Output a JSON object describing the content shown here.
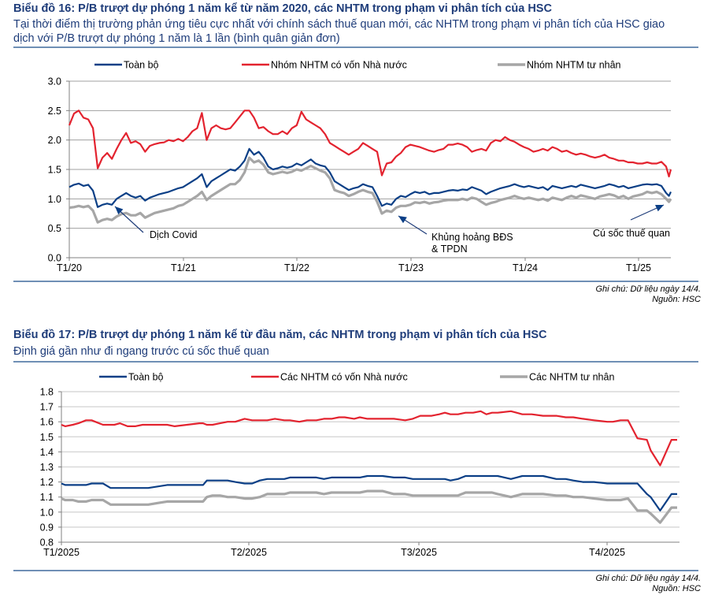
{
  "chart1": {
    "title": "Biểu đồ 16: P/B trượt dự phóng 1 năm kể từ năm 2020, các NHTM trong phạm vi phân tích của HSC",
    "subtitle_line1": "Tại thời điểm thị trường phản ứng tiêu cực nhất với chính sách thuế quan mới, các NHTM trong phạm vi phân tích của HSC giao",
    "subtitle_line2": "dịch với P/B trượt dự phóng 1 năm là 1 lần (bình quân giản đơn)",
    "note": "Ghi chú: Dữ liệu ngày 14/4.",
    "source": "Nguồn: HSC"
  },
  "chart2": {
    "title": "Biểu đồ 17: P/B trượt dự phóng 1 năm kể từ đầu năm, các NHTM trong phạm vi phân tích của HSC",
    "subtitle": "Định giá gần như đi ngang trước cú sốc thuế quan",
    "note": "Ghi chú: Dữ liệu ngày 14/4.",
    "source": "Nguồn: HSC"
  },
  "colors": {
    "total": "#0b3f86",
    "state": "#e3232f",
    "private": "#a6a6a6",
    "title": "#1f3d7a"
  },
  "chart_data": [
    {
      "type": "line",
      "title": "Biểu đồ 16: P/B trượt dự phóng 1 năm kể từ năm 2020, các NHTM trong phạm vi phân tích của HSC",
      "xlabel": "",
      "ylabel": "",
      "ylim": [
        0,
        3.0
      ],
      "yticks": [
        "0.0",
        "0.5",
        "1.0",
        "1.5",
        "2.0",
        "2.5",
        "3.0"
      ],
      "xticks": [
        "T1/20",
        "T1/21",
        "T1/22",
        "T1/23",
        "T1/24",
        "T1/25"
      ],
      "x_unit": "months since Jan 2020",
      "grid": true,
      "legend": "top",
      "x": [
        0,
        0.5,
        1,
        1.5,
        2,
        2.5,
        3,
        3.5,
        4,
        4.5,
        5,
        5.5,
        6,
        6.5,
        7,
        7.5,
        8,
        8.5,
        9,
        9.5,
        10,
        10.5,
        11,
        11.5,
        12,
        12.5,
        13,
        13.5,
        14,
        14.5,
        15,
        15.5,
        16,
        16.5,
        17,
        17.5,
        18,
        18.5,
        19,
        19.5,
        20,
        20.5,
        21,
        21.5,
        22,
        22.5,
        23,
        23.5,
        24,
        24.5,
        25,
        25.5,
        26,
        26.5,
        27,
        27.5,
        28,
        28.5,
        29,
        29.5,
        30,
        30.5,
        31,
        31.5,
        32,
        32.5,
        33,
        33.5,
        34,
        34.5,
        35,
        35.5,
        36,
        36.5,
        37,
        37.5,
        38,
        38.5,
        39,
        39.5,
        40,
        40.5,
        41,
        41.5,
        42,
        42.5,
        43,
        43.5,
        44,
        44.5,
        45,
        45.5,
        46,
        46.5,
        47,
        47.5,
        48,
        48.5,
        49,
        49.5,
        50,
        50.5,
        51,
        51.5,
        52,
        52.5,
        53,
        53.5,
        54,
        54.5,
        55,
        55.5,
        56,
        56.5,
        57,
        57.5,
        58,
        58.5,
        59,
        59.5,
        60,
        60.5,
        61,
        61.5,
        62,
        62.5,
        63,
        63.3,
        63.5
      ],
      "series": [
        {
          "name": "Toàn bộ",
          "values": [
            1.2,
            1.24,
            1.26,
            1.22,
            1.24,
            1.14,
            0.86,
            0.9,
            0.92,
            0.9,
            1.0,
            1.05,
            1.1,
            1.05,
            1.02,
            1.05,
            0.97,
            1.02,
            1.05,
            1.08,
            1.1,
            1.12,
            1.15,
            1.18,
            1.2,
            1.25,
            1.3,
            1.35,
            1.42,
            1.2,
            1.3,
            1.35,
            1.4,
            1.45,
            1.5,
            1.48,
            1.55,
            1.65,
            1.85,
            1.75,
            1.8,
            1.7,
            1.55,
            1.5,
            1.52,
            1.55,
            1.53,
            1.55,
            1.6,
            1.57,
            1.62,
            1.67,
            1.6,
            1.57,
            1.55,
            1.45,
            1.3,
            1.25,
            1.2,
            1.15,
            1.18,
            1.2,
            1.25,
            1.22,
            1.2,
            1.05,
            0.88,
            0.92,
            0.9,
            1.0,
            1.05,
            1.03,
            1.08,
            1.12,
            1.1,
            1.12,
            1.08,
            1.1,
            1.1,
            1.12,
            1.14,
            1.15,
            1.14,
            1.16,
            1.15,
            1.2,
            1.17,
            1.14,
            1.08,
            1.12,
            1.15,
            1.18,
            1.2,
            1.22,
            1.25,
            1.22,
            1.2,
            1.22,
            1.2,
            1.18,
            1.2,
            1.15,
            1.22,
            1.2,
            1.18,
            1.2,
            1.22,
            1.2,
            1.24,
            1.22,
            1.2,
            1.18,
            1.2,
            1.22,
            1.25,
            1.23,
            1.2,
            1.22,
            1.18,
            1.2,
            1.22,
            1.24,
            1.25,
            1.24,
            1.25,
            1.22,
            1.1,
            1.05,
            1.12
          ]
        },
        {
          "name": "Nhóm NHTM có vốn Nhà nước",
          "values": [
            2.25,
            2.45,
            2.5,
            2.38,
            2.35,
            2.2,
            1.52,
            1.7,
            1.78,
            1.68,
            1.85,
            2.0,
            2.12,
            1.95,
            1.98,
            1.93,
            1.8,
            1.9,
            1.93,
            1.95,
            1.96,
            2.0,
            1.98,
            2.02,
            1.98,
            2.05,
            2.15,
            2.2,
            2.46,
            2.0,
            2.2,
            2.25,
            2.2,
            2.18,
            2.2,
            2.3,
            2.4,
            2.5,
            2.5,
            2.38,
            2.2,
            2.22,
            2.15,
            2.1,
            2.1,
            2.15,
            2.1,
            2.2,
            2.25,
            2.48,
            2.35,
            2.3,
            2.25,
            2.2,
            2.1,
            1.95,
            1.9,
            1.85,
            1.8,
            1.75,
            1.8,
            1.85,
            1.95,
            1.9,
            1.85,
            1.8,
            1.4,
            1.6,
            1.62,
            1.72,
            1.78,
            1.88,
            1.92,
            1.9,
            1.88,
            1.85,
            1.82,
            1.8,
            1.83,
            1.85,
            1.92,
            1.92,
            1.94,
            1.92,
            1.88,
            1.8,
            1.83,
            1.85,
            1.82,
            1.95,
            2.0,
            1.98,
            2.05,
            2.0,
            1.97,
            1.92,
            1.88,
            1.85,
            1.8,
            1.82,
            1.85,
            1.82,
            1.88,
            1.85,
            1.8,
            1.82,
            1.78,
            1.75,
            1.77,
            1.75,
            1.72,
            1.7,
            1.72,
            1.75,
            1.7,
            1.68,
            1.65,
            1.65,
            1.62,
            1.62,
            1.6,
            1.6,
            1.62,
            1.6,
            1.6,
            1.63,
            1.55,
            1.38,
            1.5
          ]
        },
        {
          "name": "Nhóm NHTM tư nhân",
          "values": [
            0.85,
            0.86,
            0.88,
            0.86,
            0.88,
            0.8,
            0.6,
            0.64,
            0.66,
            0.64,
            0.7,
            0.74,
            0.76,
            0.72,
            0.72,
            0.76,
            0.68,
            0.72,
            0.76,
            0.78,
            0.8,
            0.82,
            0.84,
            0.88,
            0.9,
            0.95,
            1.0,
            1.05,
            1.12,
            0.98,
            1.05,
            1.1,
            1.15,
            1.2,
            1.25,
            1.25,
            1.32,
            1.45,
            1.7,
            1.62,
            1.65,
            1.58,
            1.45,
            1.42,
            1.44,
            1.46,
            1.44,
            1.46,
            1.5,
            1.48,
            1.52,
            1.56,
            1.52,
            1.48,
            1.45,
            1.35,
            1.15,
            1.12,
            1.1,
            1.05,
            1.08,
            1.12,
            1.15,
            1.12,
            1.1,
            0.95,
            0.75,
            0.8,
            0.78,
            0.85,
            0.88,
            0.88,
            0.9,
            0.94,
            0.93,
            0.95,
            0.92,
            0.94,
            0.95,
            0.97,
            0.98,
            0.98,
            0.98,
            1.0,
            0.98,
            1.02,
            1.0,
            0.95,
            0.9,
            0.93,
            0.95,
            0.98,
            1.0,
            1.02,
            1.05,
            1.02,
            1.0,
            1.02,
            1.0,
            0.98,
            1.0,
            0.97,
            1.02,
            1.0,
            0.98,
            1.02,
            1.05,
            1.02,
            1.06,
            1.04,
            1.02,
            1.0,
            1.04,
            1.06,
            1.08,
            1.06,
            1.02,
            1.05,
            1.0,
            1.04,
            1.06,
            1.08,
            1.12,
            1.1,
            1.12,
            1.08,
            1.0,
            0.95,
            1.0
          ]
        }
      ],
      "annotations": [
        {
          "text": "Dịch Covid",
          "points_to": "Toàn bộ, ~T5/2020"
        },
        {
          "text_line1": "Khủng hoảng BĐS",
          "text_line2": "& TPDN",
          "points_to": "Nhóm NHTM tư nhân, ~T11/2022"
        },
        {
          "text": "Cú sốc thuế quan",
          "points_to": "Nhóm NHTM tư nhân, T4/2025"
        }
      ]
    },
    {
      "type": "line",
      "title": "Biểu đồ 17: P/B trượt dự phóng 1 năm kể từ đầu năm, các NHTM trong phạm vi phân tích của HSC",
      "xlabel": "",
      "ylabel": "",
      "ylim": [
        0.8,
        1.8
      ],
      "yticks": [
        "0.8",
        "0.9",
        "1.0",
        "1.1",
        "1.2",
        "1.3",
        "1.4",
        "1.5",
        "1.6",
        "1.7",
        "1.8"
      ],
      "xticks": [
        "T1/2025",
        "T2/2025",
        "T3/2025",
        "T4/2025"
      ],
      "x_unit": "days since 1 Jan 2025",
      "grid": true,
      "legend": "top",
      "x": [
        0,
        2,
        6,
        9,
        13,
        16,
        22,
        26,
        28,
        31,
        35,
        39,
        43,
        46,
        51,
        56,
        60,
        73,
        75,
        77,
        80,
        84,
        88,
        92,
        97,
        101,
        105,
        109,
        113,
        118,
        121,
        126,
        130,
        135,
        139,
        143,
        147,
        150,
        155,
        158,
        162,
        167,
        170,
        176,
        182,
        186,
        190,
        196,
        200,
        203,
        206,
        210,
        214,
        218,
        222,
        225,
        228,
        231,
        238,
        241,
        244,
        249,
        255,
        262,
        267,
        271,
        276,
        282,
        289,
        292,
        296,
        300,
        305,
        310,
        312,
        317,
        323,
        326
      ],
      "series": [
        {
          "name": "Toàn bộ",
          "values": [
            1.19,
            1.18,
            1.18,
            1.18,
            1.18,
            1.19,
            1.19,
            1.16,
            1.16,
            1.16,
            1.16,
            1.16,
            1.16,
            1.16,
            1.17,
            1.18,
            1.18,
            1.18,
            1.18,
            1.21,
            1.21,
            1.21,
            1.21,
            1.2,
            1.19,
            1.19,
            1.21,
            1.22,
            1.22,
            1.22,
            1.23,
            1.23,
            1.23,
            1.23,
            1.22,
            1.23,
            1.23,
            1.23,
            1.23,
            1.23,
            1.24,
            1.24,
            1.24,
            1.23,
            1.23,
            1.22,
            1.22,
            1.22,
            1.22,
            1.22,
            1.21,
            1.22,
            1.24,
            1.24,
            1.24,
            1.24,
            1.24,
            1.24,
            1.22,
            1.23,
            1.24,
            1.24,
            1.24,
            1.22,
            1.22,
            1.21,
            1.2,
            1.2,
            1.19,
            1.19,
            1.19,
            1.19,
            1.19,
            1.12,
            1.1,
            1.01,
            1.12,
            1.12
          ]
        },
        {
          "name": "Các NHTM có vốn Nhà nước",
          "values": [
            1.58,
            1.57,
            1.58,
            1.59,
            1.61,
            1.61,
            1.58,
            1.58,
            1.58,
            1.59,
            1.57,
            1.57,
            1.58,
            1.58,
            1.58,
            1.58,
            1.57,
            1.59,
            1.59,
            1.58,
            1.58,
            1.59,
            1.6,
            1.6,
            1.62,
            1.61,
            1.61,
            1.61,
            1.62,
            1.61,
            1.61,
            1.6,
            1.61,
            1.61,
            1.62,
            1.62,
            1.63,
            1.63,
            1.62,
            1.63,
            1.62,
            1.62,
            1.62,
            1.62,
            1.61,
            1.62,
            1.64,
            1.64,
            1.65,
            1.66,
            1.65,
            1.65,
            1.66,
            1.66,
            1.67,
            1.65,
            1.66,
            1.66,
            1.67,
            1.66,
            1.65,
            1.65,
            1.64,
            1.64,
            1.63,
            1.63,
            1.62,
            1.61,
            1.6,
            1.6,
            1.61,
            1.61,
            1.49,
            1.48,
            1.41,
            1.31,
            1.48,
            1.48
          ]
        },
        {
          "name": "Các NHTM tư nhân",
          "values": [
            1.09,
            1.08,
            1.08,
            1.07,
            1.07,
            1.08,
            1.08,
            1.05,
            1.05,
            1.05,
            1.05,
            1.05,
            1.05,
            1.05,
            1.06,
            1.07,
            1.07,
            1.07,
            1.07,
            1.1,
            1.11,
            1.11,
            1.1,
            1.1,
            1.09,
            1.09,
            1.1,
            1.12,
            1.12,
            1.12,
            1.13,
            1.13,
            1.13,
            1.13,
            1.12,
            1.13,
            1.13,
            1.13,
            1.13,
            1.13,
            1.14,
            1.14,
            1.14,
            1.12,
            1.12,
            1.11,
            1.11,
            1.11,
            1.11,
            1.11,
            1.11,
            1.11,
            1.13,
            1.13,
            1.13,
            1.13,
            1.13,
            1.12,
            1.1,
            1.11,
            1.12,
            1.12,
            1.12,
            1.11,
            1.11,
            1.1,
            1.1,
            1.09,
            1.08,
            1.08,
            1.08,
            1.09,
            1.01,
            1.01,
            0.99,
            0.93,
            1.03,
            1.03
          ]
        }
      ]
    }
  ]
}
